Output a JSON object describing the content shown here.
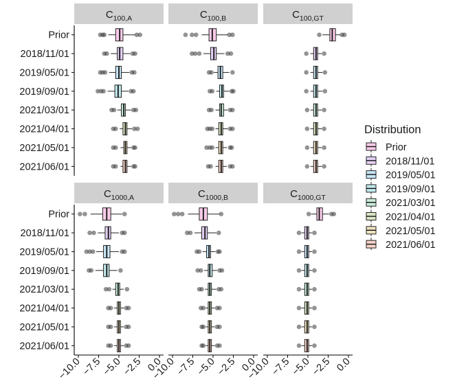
{
  "chart_data": {
    "type": "boxplot",
    "panels": [
      {
        "strip": {
          "main": "C",
          "sub": "100,A"
        },
        "boxes": [
          {
            "category": "Prior",
            "whisker_low": -6.3,
            "q1": -5.4,
            "median": -4.9,
            "q3": -4.5,
            "whisker_high": -3.0,
            "outliers": [
              -7.3,
              -7.0,
              -6.8,
              -2.8,
              -2.4
            ]
          },
          {
            "category": "2018/11/01",
            "whisker_low": -6.0,
            "q1": -5.2,
            "median": -4.9,
            "q3": -4.5,
            "whisker_high": -3.6,
            "outliers": [
              -6.8,
              -6.5,
              -3.3,
              -3.0
            ]
          },
          {
            "category": "2019/05/01",
            "whisker_low": -6.2,
            "q1": -5.4,
            "median": -5.0,
            "q3": -4.7,
            "whisker_high": -3.7,
            "outliers": [
              -7.3,
              -7.0,
              -6.7,
              -3.4,
              -3.1
            ]
          },
          {
            "category": "2019/09/01",
            "whisker_low": -6.4,
            "q1": -5.5,
            "median": -5.1,
            "q3": -4.7,
            "whisker_high": -3.8,
            "outliers": [
              -7.6,
              -7.2,
              -6.9,
              -3.5,
              -3.2
            ]
          },
          {
            "category": "2021/03/01",
            "whisker_low": -5.2,
            "q1": -4.7,
            "median": -4.4,
            "q3": -4.2,
            "whisker_high": -3.5,
            "outliers": [
              -5.9,
              -5.6,
              -3.2,
              -2.9
            ]
          },
          {
            "category": "2021/04/01",
            "whisker_low": -4.9,
            "q1": -4.5,
            "median": -4.2,
            "q3": -4.0,
            "whisker_high": -3.4,
            "outliers": [
              -5.7,
              -5.4,
              -3.1,
              -2.7
            ]
          },
          {
            "category": "2021/05/01",
            "whisker_low": -4.8,
            "q1": -4.4,
            "median": -4.2,
            "q3": -4.0,
            "whisker_high": -3.5,
            "outliers": [
              -5.7,
              -5.4,
              -3.2,
              -3.0
            ]
          },
          {
            "category": "2021/06/01",
            "whisker_low": -4.8,
            "q1": -4.5,
            "median": -4.2,
            "q3": -4.0,
            "whisker_high": -3.5,
            "outliers": [
              -5.7,
              -5.4,
              -3.2,
              -3.0
            ]
          }
        ]
      },
      {
        "strip": {
          "main": "C",
          "sub": "100,B"
        },
        "boxes": [
          {
            "category": "Prior",
            "whisker_low": -6.4,
            "q1": -5.5,
            "median": -5.1,
            "q3": -4.6,
            "whisker_high": -3.2,
            "outliers": [
              -8.4,
              -7.6,
              -7.1,
              -3.0,
              -2.6
            ]
          },
          {
            "category": "2018/11/01",
            "whisker_low": -6.2,
            "q1": -5.3,
            "median": -4.9,
            "q3": -4.6,
            "whisker_high": -3.6,
            "outliers": [
              -7.6,
              -7.2,
              -6.7,
              -3.2,
              -2.8
            ]
          },
          {
            "category": "2019/05/01",
            "whisker_low": -4.9,
            "q1": -4.4,
            "median": -4.1,
            "q3": -3.8,
            "whisker_high": -3.0,
            "outliers": [
              -5.5,
              -5.2,
              -2.6
            ]
          },
          {
            "category": "2019/09/01",
            "whisker_low": -4.6,
            "q1": -4.2,
            "median": -3.9,
            "q3": -3.7,
            "whisker_high": -3.0,
            "outliers": [
              -5.4,
              -5.1,
              -2.7,
              -2.5
            ]
          },
          {
            "category": "2021/03/01",
            "whisker_low": -4.7,
            "q1": -4.2,
            "median": -4.0,
            "q3": -3.7,
            "whisker_high": -3.2,
            "outliers": [
              -5.5,
              -5.2,
              -2.9,
              -2.6
            ]
          },
          {
            "category": "2021/04/01",
            "whisker_low": -4.7,
            "q1": -4.3,
            "median": -4.0,
            "q3": -3.8,
            "whisker_high": -3.2,
            "outliers": [
              -5.7,
              -5.4,
              -5.1,
              -2.9,
              -2.6
            ]
          },
          {
            "category": "2021/05/01",
            "whisker_low": -4.7,
            "q1": -4.3,
            "median": -4.0,
            "q3": -3.8,
            "whisker_high": -3.3,
            "outliers": [
              -5.8,
              -5.4,
              -5.1,
              -2.9,
              -2.7
            ]
          },
          {
            "category": "2021/06/01",
            "whisker_low": -4.7,
            "q1": -4.3,
            "median": -4.0,
            "q3": -3.8,
            "whisker_high": -3.3,
            "outliers": [
              -5.6,
              -5.3,
              -2.9,
              -2.6
            ]
          }
        ]
      },
      {
        "strip": {
          "main": "C",
          "sub": "100,GT"
        },
        "boxes": [
          {
            "category": "Prior",
            "whisker_low": -3.2,
            "q1": -2.3,
            "median": -2.0,
            "q3": -1.6,
            "whisker_high": -1.0,
            "outliers": [
              -3.6,
              -0.8,
              -0.5
            ]
          },
          {
            "category": "2018/11/01",
            "whisker_low": -4.7,
            "q1": -4.3,
            "median": -4.0,
            "q3": -3.8,
            "whisker_high": -3.3,
            "outliers": [
              -5.2,
              -3.0
            ]
          },
          {
            "category": "2019/05/01",
            "whisker_low": -4.7,
            "q1": -4.3,
            "median": -4.0,
            "q3": -3.8,
            "whisker_high": -3.2,
            "outliers": [
              -5.2,
              -2.9
            ]
          },
          {
            "category": "2019/09/01",
            "whisker_low": -4.7,
            "q1": -4.3,
            "median": -4.0,
            "q3": -3.8,
            "whisker_high": -3.2,
            "outliers": [
              -5.2,
              -2.9
            ]
          },
          {
            "category": "2021/03/01",
            "whisker_low": -4.7,
            "q1": -4.3,
            "median": -4.0,
            "q3": -3.8,
            "whisker_high": -3.3,
            "outliers": [
              -5.1,
              -3.0
            ]
          },
          {
            "category": "2021/04/01",
            "whisker_low": -4.7,
            "q1": -4.3,
            "median": -4.0,
            "q3": -3.8,
            "whisker_high": -3.3,
            "outliers": [
              -5.1,
              -3.0
            ]
          },
          {
            "category": "2021/05/01",
            "whisker_low": -4.7,
            "q1": -4.3,
            "median": -4.0,
            "q3": -3.8,
            "whisker_high": -3.3,
            "outliers": [
              -5.1,
              -3.0
            ]
          },
          {
            "category": "2021/06/01",
            "whisker_low": -4.7,
            "q1": -4.3,
            "median": -4.0,
            "q3": -3.8,
            "whisker_high": -3.3,
            "outliers": [
              -5.1,
              -3.0
            ]
          }
        ]
      },
      {
        "strip": {
          "main": "C",
          "sub": "1000,A"
        },
        "boxes": [
          {
            "category": "Prior",
            "whisker_low": -8.5,
            "q1": -7.0,
            "median": -6.5,
            "q3": -6.0,
            "whisker_high": -4.6,
            "outliers": [
              -9.8,
              -9.2,
              -4.3
            ]
          },
          {
            "category": "2018/11/01",
            "whisker_low": -7.6,
            "q1": -6.7,
            "median": -6.3,
            "q3": -6.0,
            "whisker_high": -5.0,
            "outliers": [
              -8.6,
              -8.1,
              -4.6,
              -4.3
            ]
          },
          {
            "category": "2019/05/01",
            "whisker_low": -7.8,
            "q1": -6.9,
            "median": -6.5,
            "q3": -6.1,
            "whisker_high": -5.0,
            "outliers": [
              -9.0,
              -8.6,
              -8.2,
              -4.6,
              -4.3
            ]
          },
          {
            "category": "2019/09/01",
            "whisker_low": -7.9,
            "q1": -6.9,
            "median": -6.5,
            "q3": -6.2,
            "whisker_high": -5.2,
            "outliers": [
              -8.7,
              -8.4,
              -4.8
            ]
          },
          {
            "category": "2021/03/01",
            "whisker_low": -5.8,
            "q1": -5.4,
            "median": -5.1,
            "q3": -4.9,
            "whisker_high": -4.4,
            "outliers": [
              -6.6,
              -6.2,
              -4.0
            ]
          },
          {
            "category": "2021/04/01",
            "whisker_low": -5.6,
            "q1": -5.2,
            "median": -5.0,
            "q3": -4.8,
            "whisker_high": -4.4,
            "outliers": [
              -6.3,
              -6.0,
              -4.1,
              -3.8
            ]
          },
          {
            "category": "2021/05/01",
            "whisker_low": -5.6,
            "q1": -5.2,
            "median": -5.0,
            "q3": -4.8,
            "whisker_high": -4.4,
            "outliers": [
              -6.3,
              -6.0,
              -4.1,
              -3.8
            ]
          },
          {
            "category": "2021/06/01",
            "whisker_low": -5.6,
            "q1": -5.2,
            "median": -5.0,
            "q3": -4.8,
            "whisker_high": -4.4,
            "outliers": [
              -6.3,
              -6.0,
              -4.1,
              -3.8
            ]
          }
        ]
      },
      {
        "strip": {
          "main": "C",
          "sub": "1000,B"
        },
        "boxes": [
          {
            "category": "Prior",
            "whisker_low": -8.1,
            "q1": -6.7,
            "median": -6.2,
            "q3": -5.7,
            "whisker_high": -4.2,
            "outliers": [
              -9.8,
              -9.3,
              -8.8,
              -4.0
            ]
          },
          {
            "category": "2018/11/01",
            "whisker_low": -7.3,
            "q1": -6.4,
            "median": -6.0,
            "q3": -5.7,
            "whisker_high": -4.6,
            "outliers": [
              -8.2,
              -7.8,
              -4.3
            ]
          },
          {
            "category": "2019/05/01",
            "whisker_low": -6.3,
            "q1": -5.8,
            "median": -5.5,
            "q3": -5.3,
            "whisker_high": -4.7,
            "outliers": [
              -7.0,
              -6.7,
              -4.4,
              -4.2
            ]
          },
          {
            "category": "2019/09/01",
            "whisker_low": -6.1,
            "q1": -5.6,
            "median": -5.4,
            "q3": -5.1,
            "whisker_high": -4.5,
            "outliers": [
              -6.9,
              -6.5,
              -4.2,
              -3.9
            ]
          },
          {
            "category": "2021/03/01",
            "whisker_low": -6.0,
            "q1": -5.6,
            "median": -5.4,
            "q3": -5.2,
            "whisker_high": -4.6,
            "outliers": [
              -6.7,
              -6.4,
              -4.3,
              -4.0
            ]
          },
          {
            "category": "2021/04/01",
            "whisker_low": -5.9,
            "q1": -5.6,
            "median": -5.4,
            "q3": -5.2,
            "whisker_high": -4.8,
            "outliers": [
              -6.5,
              -6.2,
              -4.5,
              -4.2
            ]
          },
          {
            "category": "2021/05/01",
            "whisker_low": -5.9,
            "q1": -5.6,
            "median": -5.4,
            "q3": -5.2,
            "whisker_high": -4.8,
            "outliers": [
              -6.4,
              -6.2,
              -4.5,
              -4.2
            ]
          },
          {
            "category": "2021/06/01",
            "whisker_low": -5.9,
            "q1": -5.6,
            "median": -5.4,
            "q3": -5.2,
            "whisker_high": -4.8,
            "outliers": [
              -6.4,
              -6.2,
              -4.5,
              -4.2
            ]
          }
        ]
      },
      {
        "strip": {
          "main": "C",
          "sub": "1000,GT"
        },
        "boxes": [
          {
            "category": "Prior",
            "whisker_low": -4.6,
            "q1": -3.9,
            "median": -3.6,
            "q3": -3.2,
            "whisker_high": -2.4,
            "outliers": [
              -4.9,
              -2.1,
              -1.8
            ]
          },
          {
            "category": "2018/11/01",
            "whisker_low": -5.8,
            "q1": -5.4,
            "median": -5.1,
            "q3": -4.9,
            "whisker_high": -4.5,
            "outliers": [
              -6.1,
              -4.2
            ]
          },
          {
            "category": "2019/05/01",
            "whisker_low": -5.8,
            "q1": -5.4,
            "median": -5.1,
            "q3": -4.9,
            "whisker_high": -4.5,
            "outliers": [
              -6.1,
              -4.2
            ]
          },
          {
            "category": "2019/09/01",
            "whisker_low": -5.8,
            "q1": -5.4,
            "median": -5.1,
            "q3": -4.9,
            "whisker_high": -4.5,
            "outliers": [
              -6.1,
              -4.2
            ]
          },
          {
            "category": "2021/03/01",
            "whisker_low": -5.8,
            "q1": -5.4,
            "median": -5.1,
            "q3": -4.9,
            "whisker_high": -4.5,
            "outliers": [
              -6.1,
              -4.2
            ]
          },
          {
            "category": "2021/04/01",
            "whisker_low": -5.8,
            "q1": -5.4,
            "median": -5.1,
            "q3": -4.9,
            "whisker_high": -4.5,
            "outliers": [
              -6.1,
              -4.2
            ]
          },
          {
            "category": "2021/05/01",
            "whisker_low": -5.8,
            "q1": -5.4,
            "median": -5.1,
            "q3": -4.9,
            "whisker_high": -4.5,
            "outliers": [
              -6.1,
              -4.2
            ]
          },
          {
            "category": "2021/06/01",
            "whisker_low": -5.8,
            "q1": -5.4,
            "median": -5.1,
            "q3": -4.9,
            "whisker_high": -4.5,
            "outliers": [
              -6.1,
              -4.2
            ]
          }
        ]
      }
    ],
    "categories": [
      "Prior",
      "2018/11/01",
      "2019/05/01",
      "2019/09/01",
      "2021/03/01",
      "2021/04/01",
      "2021/05/01",
      "2021/06/01"
    ],
    "xlim": [
      -10.0,
      0.0
    ],
    "x_ticks": [
      "-10.0",
      "-7.5",
      "-5.0",
      "-2.5",
      "0.0"
    ],
    "x_tick_values": [
      -10.0,
      -7.5,
      -5.0,
      -2.5,
      0.0
    ],
    "legend": {
      "title": "Distribution",
      "position": "right",
      "items": [
        "Prior",
        "2018/11/01",
        "2019/05/01",
        "2019/09/01",
        "2021/03/01",
        "2021/04/01",
        "2021/05/01",
        "2021/06/01"
      ]
    },
    "fill_colors": [
      "#f9cbe8",
      "#e3d0f3",
      "#c8e6f8",
      "#c2e8ec",
      "#c8ecd8",
      "#dae7c4",
      "#f0e2c0",
      "#f6d3c8"
    ],
    "strip_color": "#d0d0d0",
    "outlier_color": "#3a3a3a",
    "grid": false
  }
}
